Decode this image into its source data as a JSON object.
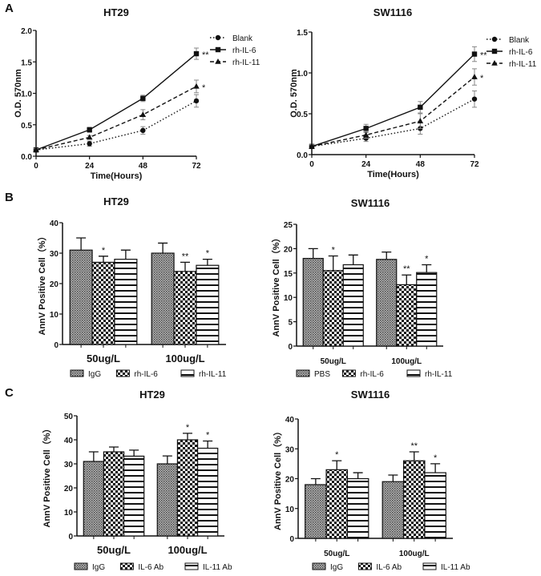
{
  "panels": [
    "A",
    "B",
    "C"
  ],
  "chart_data": [
    {
      "panel": "A",
      "type": "line",
      "title": "HT29",
      "xlabel": "Time(Hours)",
      "ylabel": "O.D. 570nm",
      "x": [
        0,
        24,
        48,
        72
      ],
      "xlim": [
        0,
        72
      ],
      "ylim": [
        0,
        2.0
      ],
      "yticks": [
        0.0,
        0.5,
        1.0,
        1.5,
        2.0
      ],
      "ytick_labels": [
        "0.0",
        "0.5",
        "1.0",
        "1.5",
        "2.0"
      ],
      "xticks": [
        0,
        24,
        48,
        72
      ],
      "legend": "right",
      "series": [
        {
          "name": "Blank",
          "marker": "circle",
          "dash": "dotted",
          "values": [
            0.1,
            0.2,
            0.41,
            0.88
          ],
          "errors": [
            0.02,
            0.04,
            0.06,
            0.1
          ],
          "annotation": ""
        },
        {
          "name": "rh-IL-6",
          "marker": "square",
          "dash": "solid",
          "values": [
            0.1,
            0.42,
            0.92,
            1.63
          ],
          "errors": [
            0.02,
            0.04,
            0.05,
            0.09
          ],
          "annotation": "**"
        },
        {
          "name": "rh-IL-11",
          "marker": "triangle",
          "dash": "dashed",
          "values": [
            0.1,
            0.3,
            0.66,
            1.11
          ],
          "errors": [
            0.02,
            0.03,
            0.08,
            0.1
          ],
          "annotation": "*"
        }
      ]
    },
    {
      "panel": "A",
      "type": "line",
      "title": "SW1116",
      "xlabel": "Time(Hours)",
      "ylabel": "O.D. 570nm",
      "x": [
        0,
        24,
        48,
        72
      ],
      "xlim": [
        0,
        72
      ],
      "ylim": [
        0,
        1.5
      ],
      "yticks": [
        0.0,
        0.5,
        1.0,
        1.5
      ],
      "ytick_labels": [
        "0.0",
        "0.5",
        "1.0",
        "1.5"
      ],
      "xticks": [
        0,
        24,
        48,
        72
      ],
      "legend": "right",
      "series": [
        {
          "name": "Blank",
          "marker": "circle",
          "dash": "dotted",
          "values": [
            0.1,
            0.2,
            0.32,
            0.68
          ],
          "errors": [
            0.02,
            0.04,
            0.07,
            0.1
          ],
          "annotation": ""
        },
        {
          "name": "rh-IL-6",
          "marker": "square",
          "dash": "solid",
          "values": [
            0.1,
            0.32,
            0.58,
            1.23
          ],
          "errors": [
            0.02,
            0.05,
            0.07,
            0.09
          ],
          "annotation": "**"
        },
        {
          "name": "rh-IL-11",
          "marker": "triangle",
          "dash": "dashed",
          "values": [
            0.1,
            0.24,
            0.41,
            0.95
          ],
          "errors": [
            0.02,
            0.04,
            0.09,
            0.1
          ],
          "annotation": "*"
        }
      ]
    },
    {
      "panel": "B",
      "type": "bar",
      "title": "HT29",
      "xlabel": "",
      "ylabel": "AnnV Positive Cell（%）",
      "categories": [
        "50ug/L",
        "100ug/L"
      ],
      "ylim": [
        0,
        40
      ],
      "yticks": [
        0,
        10,
        20,
        30,
        40
      ],
      "legend": "bottom",
      "series": [
        {
          "name": "IgG",
          "pattern": "dots",
          "values": [
            31,
            30
          ],
          "errors": [
            4,
            3.3
          ],
          "annotations": [
            "",
            ""
          ]
        },
        {
          "name": "rh-IL-6",
          "pattern": "checker",
          "values": [
            27,
            24
          ],
          "errors": [
            2,
            3
          ],
          "annotations": [
            "*",
            "**"
          ]
        },
        {
          "name": "rh-IL-11",
          "pattern": "stripes",
          "values": [
            28,
            26
          ],
          "errors": [
            3,
            2
          ],
          "annotations": [
            "",
            "*"
          ]
        }
      ]
    },
    {
      "panel": "B",
      "type": "bar",
      "title": "SW1116",
      "xlabel": "",
      "ylabel": "AnnV Positive Cell（%）",
      "categories": [
        "50ug/L",
        "100ug/L"
      ],
      "ylim": [
        0,
        25
      ],
      "yticks": [
        0,
        5,
        10,
        15,
        20,
        25
      ],
      "legend": "bottom",
      "series": [
        {
          "name": "PBS",
          "pattern": "dots",
          "values": [
            18,
            17.8
          ],
          "errors": [
            2,
            1.5
          ],
          "annotations": [
            "",
            ""
          ]
        },
        {
          "name": "rh-IL-6",
          "pattern": "checker",
          "values": [
            15.5,
            12.6
          ],
          "errors": [
            3,
            2
          ],
          "annotations": [
            "*",
            "**"
          ]
        },
        {
          "name": "rh-IL-11",
          "pattern": "stripes",
          "values": [
            16.7,
            15.1
          ],
          "errors": [
            2,
            1.6
          ],
          "annotations": [
            "",
            "*"
          ]
        }
      ]
    },
    {
      "panel": "C",
      "type": "bar",
      "title": "HT29",
      "xlabel": "",
      "ylabel": "AnnV Positive Cell（%）",
      "categories": [
        "50ug/L",
        "100ug/L"
      ],
      "ylim": [
        0,
        50
      ],
      "yticks": [
        0,
        10,
        20,
        30,
        40,
        50
      ],
      "legend": "bottom",
      "series": [
        {
          "name": "IgG",
          "pattern": "dots",
          "values": [
            31,
            30
          ],
          "errors": [
            4,
            3.3
          ],
          "annotations": [
            "",
            ""
          ]
        },
        {
          "name": "IL-6 Ab",
          "pattern": "checker",
          "values": [
            35,
            40
          ],
          "errors": [
            2,
            2.7
          ],
          "annotations": [
            "",
            "*"
          ]
        },
        {
          "name": "IL-11 Ab",
          "pattern": "stripes",
          "values": [
            33.2,
            36.5
          ],
          "errors": [
            2.5,
            3
          ],
          "annotations": [
            "",
            "*"
          ]
        }
      ]
    },
    {
      "panel": "C",
      "type": "bar",
      "title": "SW1116",
      "xlabel": "",
      "ylabel": "AnnV Positive Cell（%）",
      "categories": [
        "50ug/L",
        "100ug/L"
      ],
      "ylim": [
        0,
        40
      ],
      "yticks": [
        0,
        10,
        20,
        30,
        40
      ],
      "legend": "bottom",
      "series": [
        {
          "name": "IgG",
          "pattern": "dots",
          "values": [
            18,
            19
          ],
          "errors": [
            2,
            2.2
          ],
          "annotations": [
            "",
            ""
          ]
        },
        {
          "name": "IL-6 Ab",
          "pattern": "checker",
          "values": [
            23,
            26
          ],
          "errors": [
            3,
            3
          ],
          "annotations": [
            "*",
            "**"
          ]
        },
        {
          "name": "IL-11 Ab",
          "pattern": "stripes",
          "values": [
            20,
            22
          ],
          "errors": [
            2,
            3
          ],
          "annotations": [
            "",
            "*"
          ]
        }
      ]
    }
  ]
}
